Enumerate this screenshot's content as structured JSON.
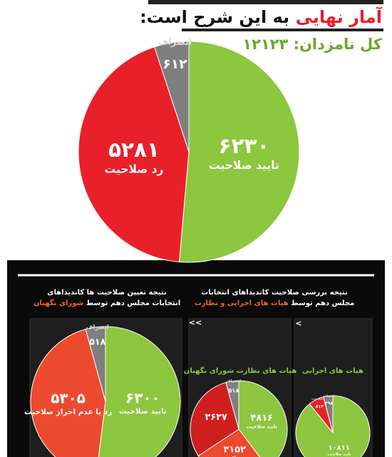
{
  "header": {
    "highlight": "آمار نهایی",
    "rest": "به این شرح است:",
    "total_label": "کل نامزدان:",
    "total": "۱۲۱۲۳"
  },
  "panel": {
    "left_title_1": "نتیجه تعیین صلاحیت ها کاندیداهای",
    "left_title_2": "انتخابات مجلس دهم توسط",
    "left_title_3": "شورای نگهبان",
    "right_title_1": "نتیجه بررسی صلاحیت کاندیداهای انتخابات",
    "right_title_2": "مجلس دهم توسط",
    "right_title_3": "هیات های اجرایی و نظارت"
  },
  "charts": [
    {
      "labels": [
        "تایید صلاحیت",
        "رد صلاحیت",
        "انصراف"
      ],
      "values": [
        6230,
        5281,
        612
      ],
      "value_labels": [
        "۶۲۳۰",
        "۵۲۸۱",
        "۶۱۲"
      ],
      "colors": [
        "#8dc63f",
        "#e8202a",
        "#7f7f7f"
      ]
    },
    {
      "labels": [
        "تایید صلاحیت",
        "رد یا عدم احراز صلاحیت",
        "انصراف"
      ],
      "values": [
        6300,
        5305,
        518
      ],
      "value_labels": [
        "۶۳۰۰",
        "۵۳۰۵",
        "۵۱۸"
      ],
      "colors": [
        "#8dc63f",
        "#ec4a2e",
        "#7f7f7f"
      ]
    },
    {
      "title": "هیات های نظارت شورای نگهبان",
      "nav": "<<",
      "labels": [
        "تایید صلاحیت",
        "رد صلاحیت",
        null,
        "انصراف"
      ],
      "values": [
        4816,
        3152,
        3637,
        518
      ],
      "value_labels": [
        "۴۸۱۶",
        "۳۱۵۲",
        "۳۶۳۷",
        "۵۱۸"
      ],
      "colors": [
        "#8dc63f",
        "#ec4a2e",
        "#d0201e",
        "#7f7f7f"
      ]
    },
    {
      "title": "هیات های اجرایی",
      "nav": "<",
      "labels": [
        "تایید صلاحیت",
        "رد صلاحیت",
        "انصراف"
      ],
      "values": [
        10811,
        814,
        498
      ],
      "value_labels": [
        "۱۰۸۱۱",
        "۸۱۴",
        "۴۹۸"
      ],
      "colors": [
        "#8dc63f",
        "#e8202a",
        "#7f7f7f"
      ]
    }
  ]
}
